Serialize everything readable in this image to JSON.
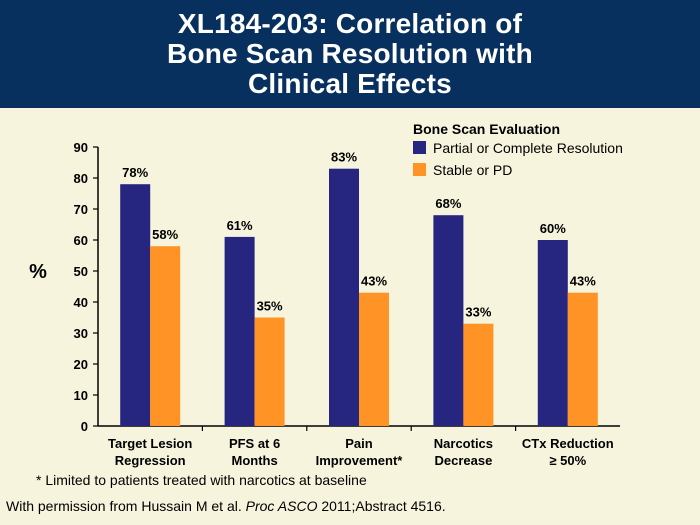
{
  "header": {
    "title_lines": [
      "XL184-203: Correlation of",
      "Bone Scan Resolution with",
      "Clinical Effects"
    ]
  },
  "chart_data": {
    "type": "bar",
    "categories": [
      [
        "Target Lesion",
        "Regression"
      ],
      [
        "PFS at 6",
        "Months"
      ],
      [
        "Pain",
        "Improvement*"
      ],
      [
        "Narcotics",
        "Decrease"
      ],
      [
        "CTx Reduction",
        "≥ 50%"
      ]
    ],
    "series": [
      {
        "name": "Partial or Complete Resolution",
        "color": "#262680",
        "values": [
          78,
          61,
          83,
          68,
          60
        ],
        "labels": [
          "78%",
          "61%",
          "83%",
          "68%",
          "60%"
        ]
      },
      {
        "name": "Stable or PD",
        "color": "#ff9326",
        "values": [
          58,
          35,
          43,
          33,
          43
        ],
        "labels": [
          "58%",
          "35%",
          "43%",
          "33%",
          "43%"
        ]
      }
    ],
    "ylabel": "%",
    "ylim": [
      0,
      90
    ],
    "yticks": [
      "0",
      "10",
      "20",
      "30",
      "40",
      "50",
      "60",
      "70",
      "80",
      "90"
    ],
    "legend_title": "Bone Scan Evaluation",
    "legend_placement": "top-right",
    "grid": false
  },
  "footnote": "* Limited to patients treated with narcotics at baseline",
  "credit": {
    "before": "With permission from Hussain M et al. ",
    "italic": "Proc ASCO",
    "after": " 2011;Abstract 4516."
  }
}
